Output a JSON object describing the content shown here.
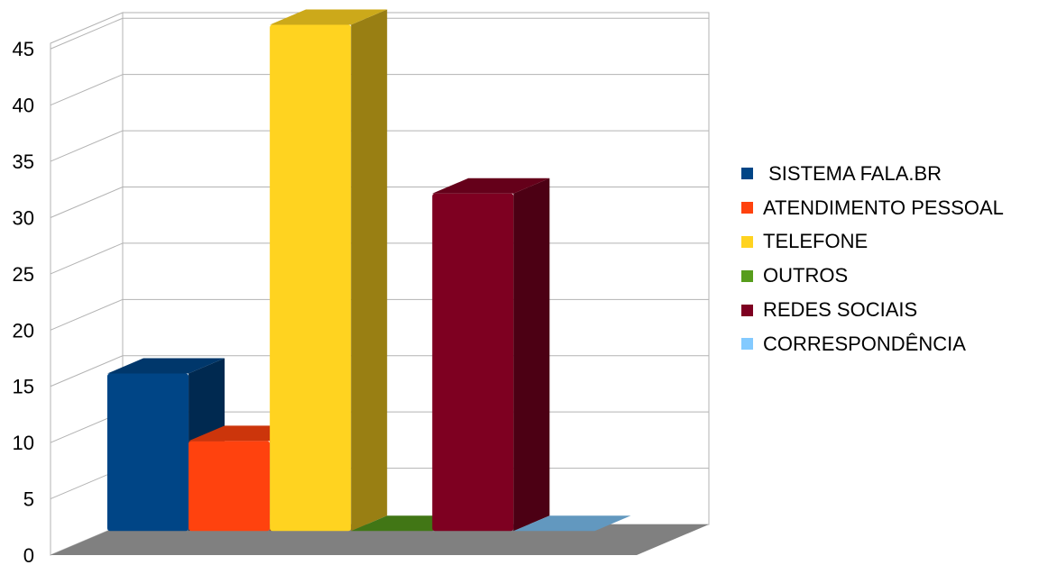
{
  "chart_data": {
    "type": "bar",
    "style": "3d",
    "categories": [
      " SISTEMA FALA.BR",
      "ATENDIMENTO PESSOAL",
      "TELEFONE",
      "OUTROS",
      "REDES SOCIAIS",
      "CORRESPONDÊNCIA"
    ],
    "values": [
      14,
      8,
      45,
      0,
      30,
      0
    ],
    "colors": [
      "#004586",
      "#ff420e",
      "#ffd320",
      "#579d1c",
      "#7e0021",
      "#83caff"
    ],
    "y_ticks": [
      "0",
      "5",
      "10",
      "15",
      "20",
      "25",
      "30",
      "35",
      "40",
      "45"
    ],
    "ylim": [
      0,
      45
    ],
    "grid": true,
    "legend_position": "right"
  }
}
